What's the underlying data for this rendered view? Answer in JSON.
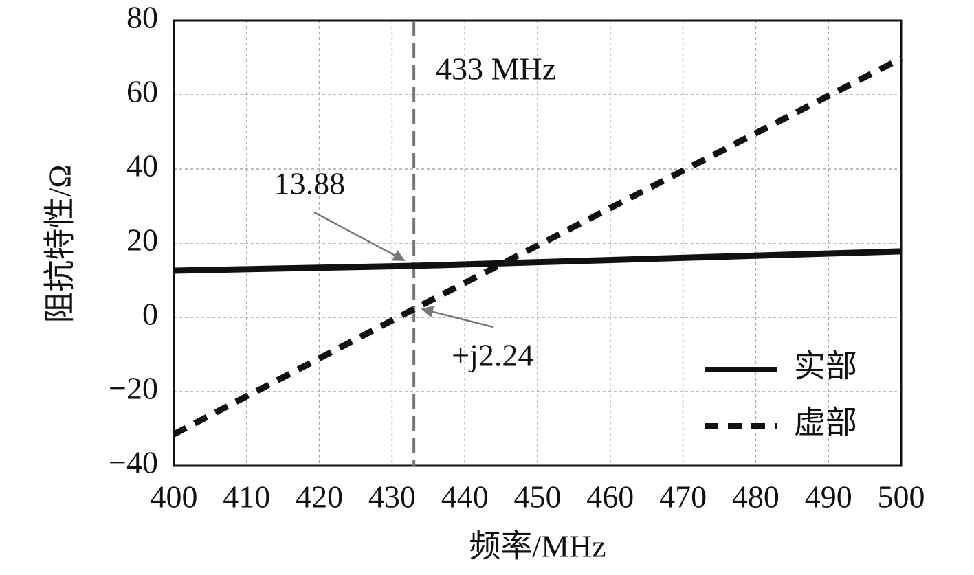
{
  "chart_data": {
    "type": "line",
    "xlabel": "频率/MHz",
    "ylabel": "阻抗特性/Ω",
    "x": [
      400,
      433,
      500
    ],
    "series": [
      {
        "name": "实部",
        "color": "#111111",
        "dash": "solid",
        "values": [
          12.6,
          13.88,
          17.8
        ]
      },
      {
        "name": "虚部",
        "color": "#111111",
        "dash": "dashed",
        "values": [
          -31.5,
          2.24,
          69.8
        ]
      }
    ],
    "xlim": [
      400,
      500
    ],
    "xticks": [
      400,
      410,
      420,
      430,
      440,
      450,
      460,
      470,
      480,
      490,
      500
    ],
    "ylim": [
      -40,
      80
    ],
    "yticks": [
      {
        "value": -40,
        "label": "−40"
      },
      {
        "value": -20,
        "label": "−20"
      },
      0,
      20,
      40,
      60,
      80
    ],
    "grid": true,
    "legend": "lower right",
    "vline": {
      "x": 433,
      "label": "433 MHz",
      "color": "#777777"
    },
    "annotations": [
      {
        "text": "13.88",
        "x": 433,
        "y": 13.88
      },
      {
        "text": "+j2.24",
        "x": 433,
        "y": 2.24
      }
    ]
  }
}
